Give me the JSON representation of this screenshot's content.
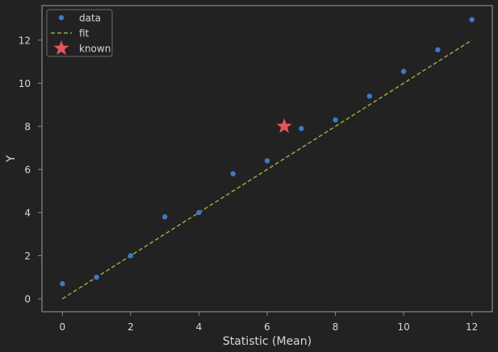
{
  "chart_data": {
    "type": "scatter",
    "title": "",
    "xlabel": "Statistic (Mean)",
    "ylabel": "Y",
    "xlim": [
      -0.6,
      12.6
    ],
    "ylim": [
      -0.6,
      13.6
    ],
    "xticks": [
      0,
      2,
      4,
      6,
      8,
      10,
      12
    ],
    "yticks": [
      0,
      2,
      4,
      6,
      8,
      10,
      12
    ],
    "grid": false,
    "legend_position": "top-left",
    "colors": {
      "background": "#222222",
      "axes_frame": "#8a8a8a",
      "text": "#d8d8d8",
      "data": "#3f78c8",
      "fit": "#9aaa3a",
      "known": "#e0565b"
    },
    "series": [
      {
        "name": "data",
        "kind": "points",
        "marker": "circle",
        "x": [
          0,
          1,
          2,
          3,
          4,
          5,
          6,
          7,
          8,
          9,
          10,
          11,
          12
        ],
        "y": [
          0.7,
          1.0,
          2.0,
          3.8,
          4.0,
          5.8,
          6.4,
          7.9,
          8.3,
          9.4,
          10.55,
          11.55,
          12.95
        ]
      },
      {
        "name": "fit",
        "kind": "dashed-line",
        "x": [
          0,
          12
        ],
        "y": [
          0,
          12
        ]
      },
      {
        "name": "known",
        "kind": "star",
        "x": [
          6.5
        ],
        "y": [
          8.0
        ]
      }
    ]
  }
}
